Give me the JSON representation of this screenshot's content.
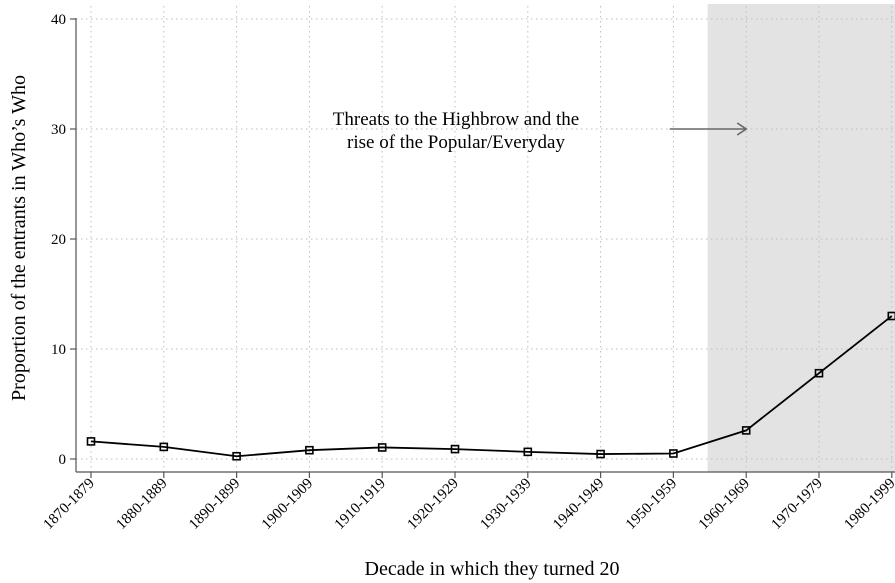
{
  "chart_data": {
    "type": "line",
    "xlabel": "Decade in which they turned 20",
    "ylabel": "Proportion of the entrants in Who’s Who",
    "ylim": [
      0,
      40
    ],
    "yticks": [
      0,
      10,
      20,
      30,
      40
    ],
    "grid": true,
    "categories": [
      "1870-1879",
      "1880-1889",
      "1890-1899",
      "1900-1909",
      "1910-1919",
      "1920-1929",
      "1930-1939",
      "1940-1949",
      "1950-1959",
      "1960-1969",
      "1970-1979",
      "1980-1999"
    ],
    "series": [
      {
        "values": [
          1.6,
          1.1,
          0.25,
          0.8,
          1.05,
          0.9,
          0.65,
          0.45,
          0.5,
          2.6,
          7.8,
          13.0
        ],
        "color": "#000000",
        "marker": "square"
      }
    ],
    "shaded_region": {
      "from_category": "1950-1959",
      "from_offset": 0.47,
      "to": "right-edge",
      "color": "#e3e3e3"
    },
    "annotation": {
      "lines": [
        "Threats to the Highbrow and the",
        "rise of the Popular/Everyday"
      ],
      "arrow_color": "#666666",
      "arrow_y": 30,
      "arrow_from_category": 7.95,
      "arrow_to_category": 9
    }
  }
}
